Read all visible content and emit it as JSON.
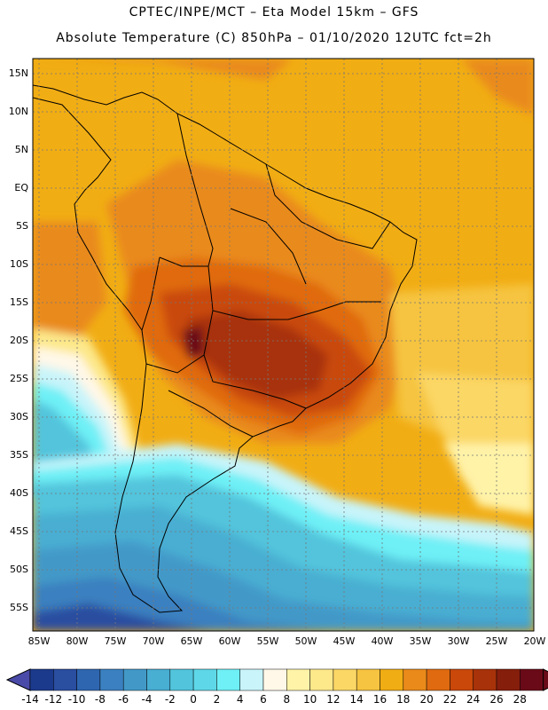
{
  "title_line1": "CPTEC/INPE/MCT –  Eta Model 15km – GFS",
  "title_line2": "Absolute Temperature (C) 850hPa – 01/10/2020 12UTC fct=2h",
  "lat_labels": [
    "15N",
    "10N",
    "5N",
    "EQ",
    "5S",
    "10S",
    "15S",
    "20S",
    "25S",
    "30S",
    "35S",
    "40S",
    "45S",
    "50S",
    "55S"
  ],
  "lon_labels": [
    "85W",
    "80W",
    "75W",
    "70W",
    "65W",
    "60W",
    "55W",
    "50W",
    "45W",
    "40W",
    "35W",
    "30W",
    "25W",
    "20W"
  ],
  "colorbar": {
    "labels": [
      "-14",
      "-12",
      "-10",
      "-8",
      "-6",
      "-4",
      "-2",
      "0",
      "2",
      "4",
      "6",
      "8",
      "10",
      "12",
      "14",
      "16",
      "18",
      "20",
      "22",
      "24",
      "26",
      "28"
    ],
    "colors": [
      "#1c3a8c",
      "#2a4ea0",
      "#2f66b0",
      "#3b80c0",
      "#4299c8",
      "#48aed2",
      "#52c4dc",
      "#5ed8e8",
      "#6ef0f6",
      "#c8f4fa",
      "#fff8e8",
      "#fff3a8",
      "#fde88a",
      "#fbd765",
      "#f6c440",
      "#f1ad14",
      "#e98a1a",
      "#e06a10",
      "#c9480a",
      "#a8320a",
      "#861e0c",
      "#6a0a18"
    ],
    "left_arrow": "#4a4aa8",
    "right_arrow": "#6a0a18"
  }
}
